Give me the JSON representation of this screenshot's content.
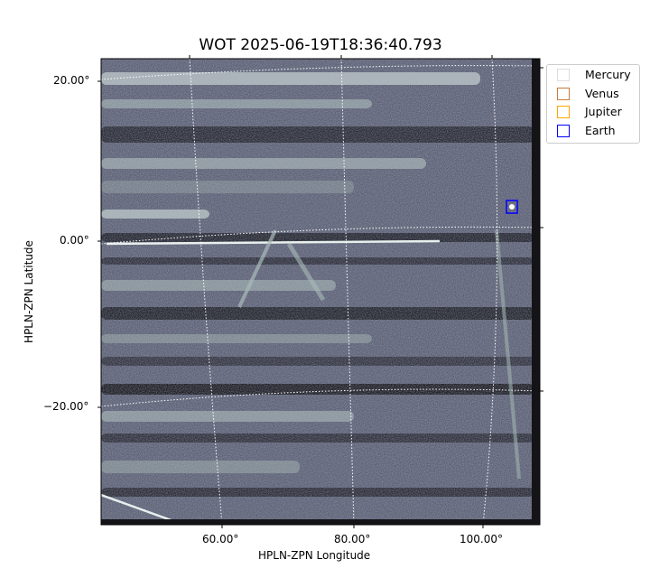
{
  "chart_data": {
    "type": "image",
    "title": "WOT 2025-06-19T18:36:40.793",
    "xlabel": "HPLN-ZPN Longitude",
    "ylabel": "HPLN-ZPN Latitude",
    "xticks": [
      "60.00°",
      "80.00°",
      "100.00°"
    ],
    "yticks": [
      "20.00°",
      "0.00°",
      "−20.00°"
    ],
    "colormap": "bone",
    "grid": true,
    "legend_position": "outside-top-right",
    "legend": [
      {
        "name": "Mercury",
        "color": "#dddddd"
      },
      {
        "name": "Venus",
        "color": "#c87a3c"
      },
      {
        "name": "Jupiter",
        "color": "#ffa500"
      },
      {
        "name": "Earth",
        "color": "#0000ff"
      }
    ],
    "markers": [
      {
        "name": "Earth",
        "lon": 104.5,
        "lat": 4.0
      }
    ]
  }
}
